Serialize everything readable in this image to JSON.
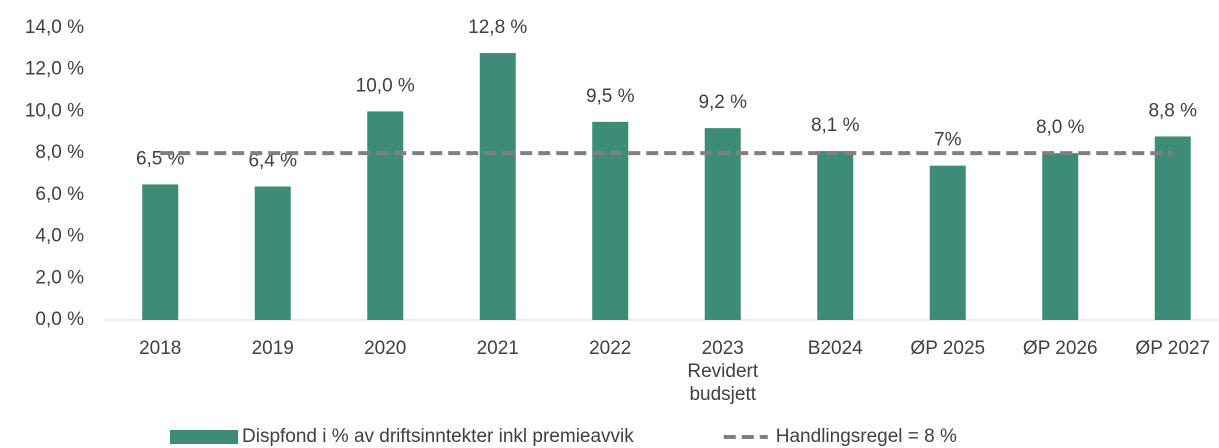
{
  "chart_data": {
    "type": "bar",
    "categories": [
      "2018",
      "2019",
      "2020",
      "2021",
      "2022",
      "2023\nRevidert\nbudsjett",
      "B2024",
      "ØP 2025",
      "ØP 2026",
      "ØP 2027"
    ],
    "series": [
      {
        "name": "Dispfond i % av driftsinntekter inkl premieavvik",
        "color": "#3d8c77",
        "type": "bar",
        "values": [
          6.5,
          6.4,
          10.0,
          12.8,
          9.5,
          9.2,
          8.1,
          7.4,
          8.0,
          8.8
        ],
        "value_labels": [
          "6,5 %",
          "6,4 %",
          "10,0 %",
          "12,8 %",
          "9,5 %",
          "9,2 %",
          "8,1 %",
          "7%",
          "8,0 %",
          "8,8 %"
        ]
      },
      {
        "name": "Handlingsregel = 8 %",
        "color": "#808080",
        "type": "line",
        "dashed": true,
        "values": [
          8,
          8,
          8,
          8,
          8,
          8,
          8,
          8,
          8,
          8
        ]
      }
    ],
    "ylim": [
      0,
      14
    ],
    "yticks": [
      {
        "value": 0,
        "label": "0,0 %"
      },
      {
        "value": 2,
        "label": "2,0 %"
      },
      {
        "value": 4,
        "label": "4,0 %"
      },
      {
        "value": 6,
        "label": "6,0 %"
      },
      {
        "value": 8,
        "label": "8,0 %"
      },
      {
        "value": 10,
        "label": "10,0 %"
      },
      {
        "value": 12,
        "label": "12,0 %"
      },
      {
        "value": 14,
        "label": "14,0 %"
      }
    ],
    "legend": "bottom"
  }
}
